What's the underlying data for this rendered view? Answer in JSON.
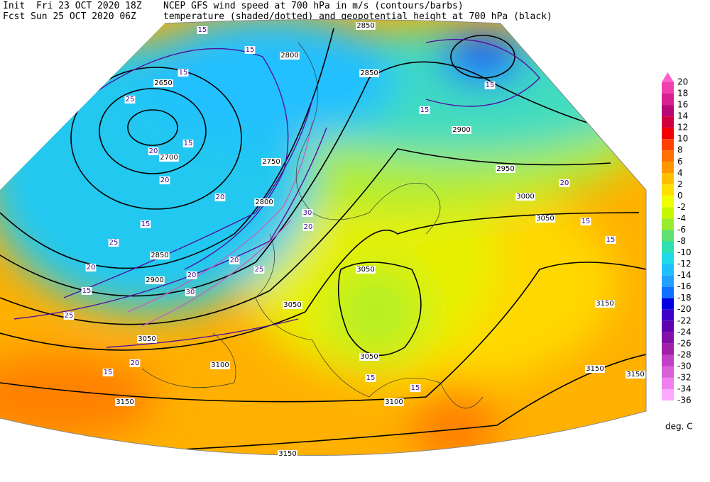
{
  "header": {
    "init": "Init  Fri 23 OCT 2020 18Z",
    "fcst": "Fcst Sun 25 OCT 2020 06Z",
    "title": "NCEP GFS wind speed at 700 hPa in m/s (contours/barbs)",
    "subtitle": "temperature (shaded/dotted) and geopotential height at 700 hPa (black)"
  },
  "colorbar": {
    "labels": [
      20,
      18,
      16,
      14,
      12,
      10,
      8,
      6,
      4,
      2,
      0,
      -2,
      -4,
      -6,
      -8,
      -10,
      -12,
      -14,
      -16,
      -18,
      -20,
      -22,
      -24,
      -26,
      -28,
      -30,
      -32,
      -34,
      -36
    ],
    "colors": [
      "#f040b0",
      "#d82090",
      "#b80878",
      "#d00040",
      "#f00000",
      "#ff4000",
      "#ff7000",
      "#ff9800",
      "#ffc000",
      "#ffe000",
      "#f0ff00",
      "#c8f800",
      "#98ec30",
      "#60e070",
      "#30e0b0",
      "#20d8e8",
      "#20c0ff",
      "#20a0ff",
      "#1070ff",
      "#0000e0",
      "#4000c8",
      "#6000b0",
      "#8010a8",
      "#a020a8",
      "#c040c8",
      "#d860d8",
      "#f080f0",
      "#ffa8ff"
    ],
    "top_color": "#ff60c8",
    "unit": "deg. C"
  },
  "height_labels": [
    "2850",
    "2800",
    "2850",
    "2650",
    "2900",
    "2700",
    "2750",
    "2950",
    "3000",
    "2800",
    "3050",
    "2850",
    "3050",
    "2900",
    "3050",
    "3150",
    "3050",
    "3050",
    "3100",
    "3150",
    "3150",
    "3100",
    "3150",
    "3150"
  ],
  "wind_labels": [
    "15",
    "15",
    "15",
    "25",
    "20",
    "15",
    "20",
    "20",
    "15",
    "15",
    "15",
    "20",
    "20",
    "25",
    "30",
    "20",
    "20",
    "25",
    "30",
    "20",
    "15",
    "25",
    "20",
    "15",
    "15",
    "15",
    "15",
    "15"
  ]
}
